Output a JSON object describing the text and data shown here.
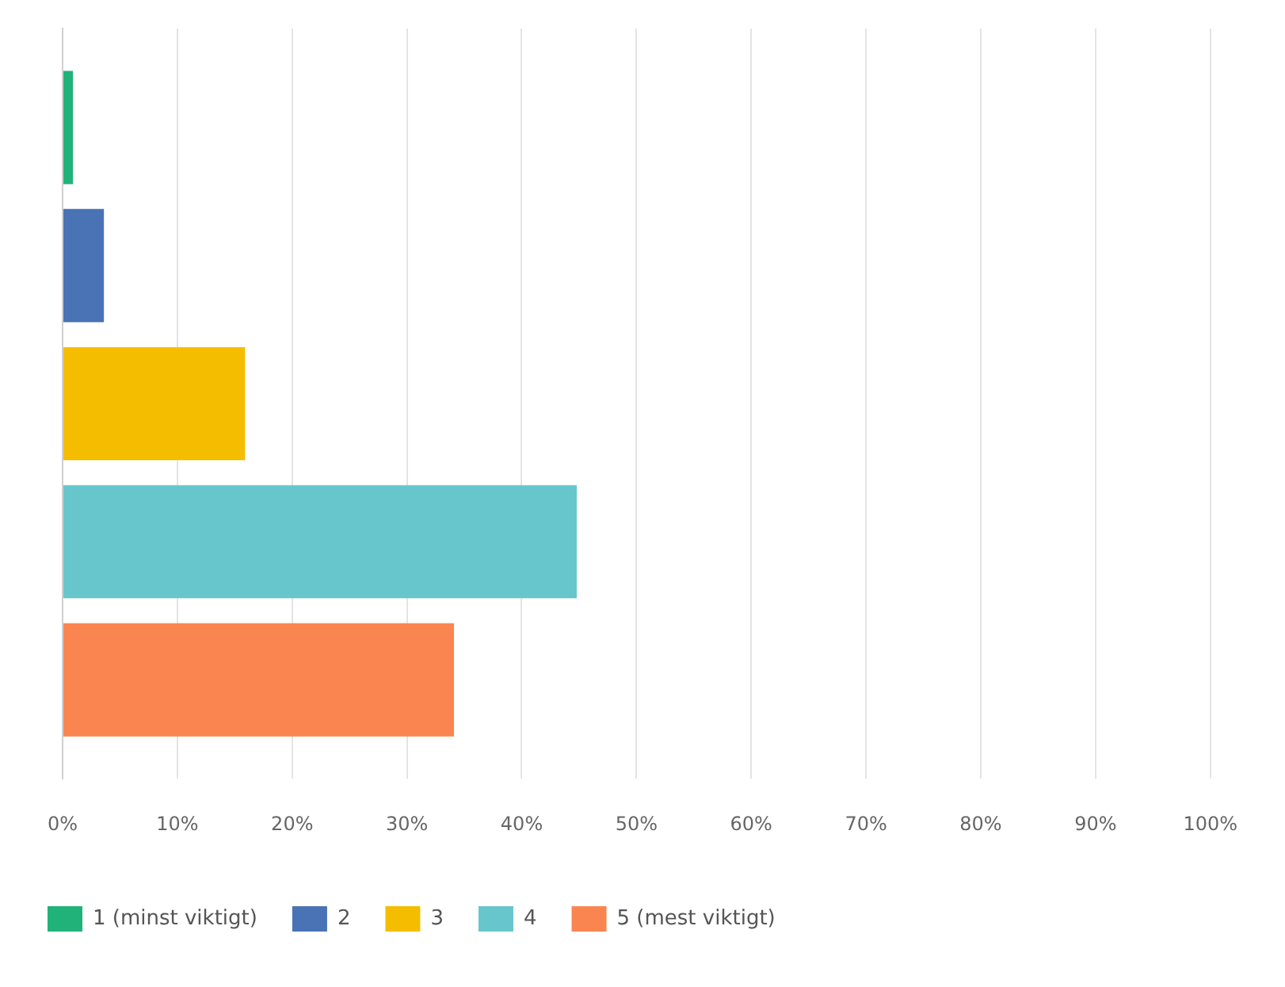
{
  "chart_data": {
    "type": "bar",
    "orientation": "horizontal",
    "categories": [
      null
    ],
    "series": [
      {
        "name": "1 (minst viktigt)",
        "color": "#21b27a",
        "values": [
          0.9
        ]
      },
      {
        "name": "2",
        "color": "#4a73b5",
        "values": [
          3.6
        ]
      },
      {
        "name": "3",
        "color": "#f5bd00",
        "values": [
          15.9
        ]
      },
      {
        "name": "4",
        "color": "#67c6cb",
        "values": [
          44.8
        ]
      },
      {
        "name": "5 (mest viktigt)",
        "color": "#fb8550",
        "values": [
          34.1
        ]
      }
    ],
    "xlim": [
      0,
      100
    ],
    "xticks": [
      {
        "value": 0,
        "label": "0%"
      },
      {
        "value": 10,
        "label": "10%"
      },
      {
        "value": 20,
        "label": "20%"
      },
      {
        "value": 30,
        "label": "30%"
      },
      {
        "value": 40,
        "label": "40%"
      },
      {
        "value": 50,
        "label": "50%"
      },
      {
        "value": 60,
        "label": "60%"
      },
      {
        "value": 70,
        "label": "70%"
      },
      {
        "value": 80,
        "label": "80%"
      },
      {
        "value": 90,
        "label": "90%"
      },
      {
        "value": 100,
        "label": "100%"
      }
    ],
    "grid": "x",
    "legend": "bottom"
  }
}
